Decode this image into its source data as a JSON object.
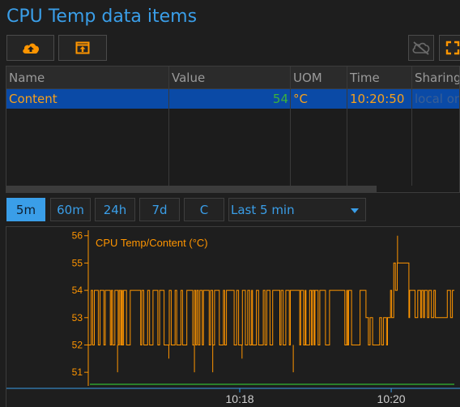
{
  "title": "CPU Temp data items",
  "toolbar": {
    "upload_icon": "cloud-upload-icon",
    "export_icon": "export-icon",
    "cloud_off_icon": "cloud-off-icon",
    "fullscreen_icon": "fullscreen-icon"
  },
  "table": {
    "columns": [
      "Name",
      "Value",
      "UOM",
      "Time",
      "Sharing"
    ],
    "rows": [
      {
        "name": "Content",
        "value": "54",
        "uom": "°C",
        "time": "10:20:50",
        "sharing": "local on"
      }
    ]
  },
  "range_buttons": [
    "5m",
    "60m",
    "24h",
    "7d",
    "C"
  ],
  "range_active": "5m",
  "range_select": "Last 5 min",
  "colors": {
    "accent": "#3a9ee8",
    "series": "#ff9500",
    "value_green": "#3bb23b",
    "selected_row": "#0a4aa6"
  },
  "chart_data": {
    "type": "line",
    "legend": "CPU Temp/Content (°C)",
    "y_ticks": [
      "51",
      "52",
      "53",
      "54",
      "55",
      "56"
    ],
    "x_ticks": [
      "10:18",
      "10:20"
    ],
    "ylim": [
      50.5,
      56.2
    ],
    "x_range": [
      "10:16:00",
      "10:20:50"
    ],
    "series": [
      {
        "name": "CPU Temp/Content (°C)",
        "regimes": [
          {
            "from": "10:16:00",
            "to": "10:19:40",
            "low": 52,
            "high": 54
          },
          {
            "from": "10:19:40",
            "to": "10:19:58",
            "low": 52,
            "high": 53
          },
          {
            "from": "10:19:58",
            "to": "10:20:02",
            "low": 53,
            "high": 54
          },
          {
            "from": "10:20:02",
            "to": "10:20:14",
            "low": 54,
            "high": 55
          },
          {
            "from": "10:20:14",
            "to": "10:20:50",
            "low": 53,
            "high": 54
          }
        ],
        "spikes_down": [
          51,
          51.5,
          51,
          51,
          51.5,
          51
        ],
        "spike_up": 56
      }
    ]
  }
}
